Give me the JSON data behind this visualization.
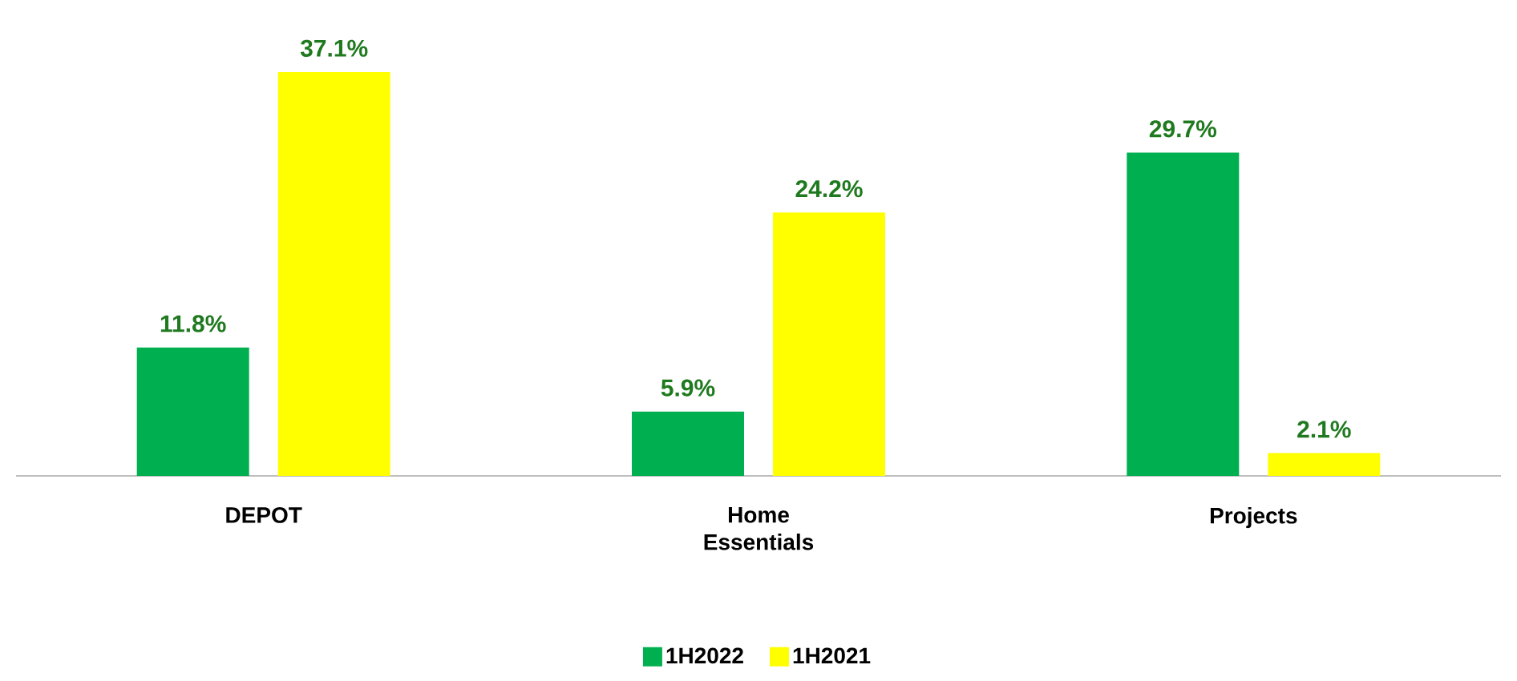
{
  "chart_data": {
    "type": "bar",
    "categories": [
      "DEPOT",
      "Home Essentials",
      "Projects"
    ],
    "series": [
      {
        "name": "1H2022",
        "color": "#00b050",
        "values": [
          11.8,
          5.9,
          29.7
        ],
        "value_labels": [
          "11.8%",
          "5.9%",
          "29.7%"
        ]
      },
      {
        "name": "1H2021",
        "color": "#ffff00",
        "values": [
          37.1,
          24.2,
          2.1
        ],
        "value_labels": [
          "37.1%",
          "24.2%",
          "2.1%"
        ]
      }
    ],
    "legend": "bottom",
    "grid": false
  }
}
